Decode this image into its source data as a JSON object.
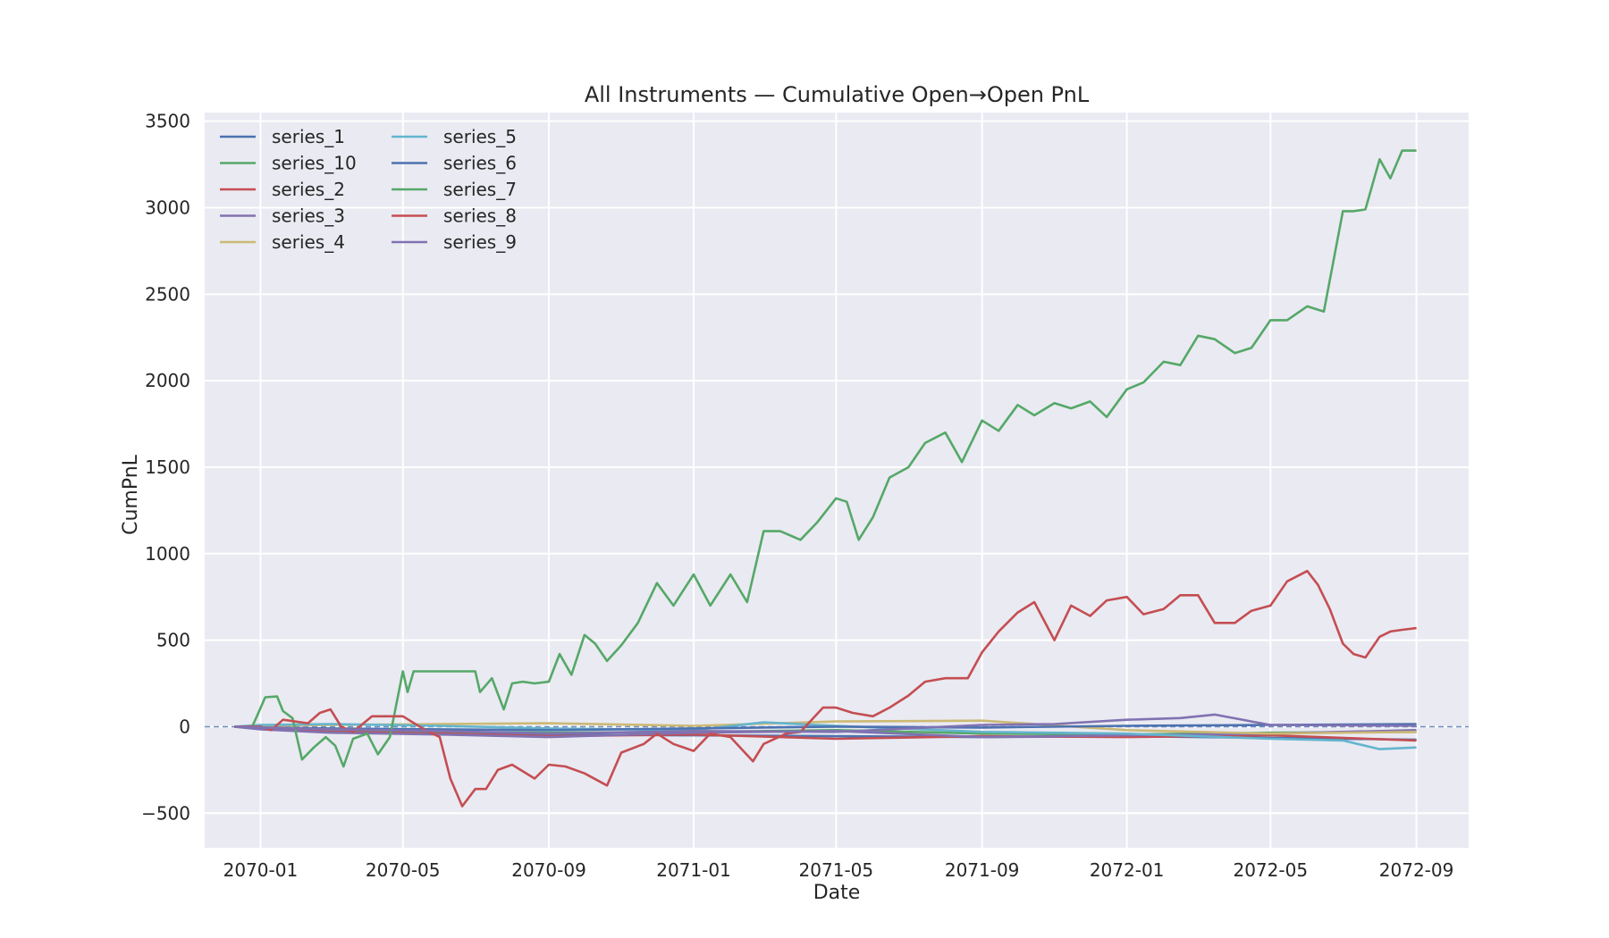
{
  "chart_data": {
    "type": "line",
    "title": "All Instruments — Cumulative Open→Open PnL",
    "xlabel": "Date",
    "ylabel": "CumPnL",
    "x_type": "date",
    "xlim": [
      "2069-11-15",
      "2072-10-15"
    ],
    "ylim": [
      -700,
      3550
    ],
    "x_ticks": [
      "2070-01-01",
      "2070-05-01",
      "2070-09-01",
      "2071-01-01",
      "2071-05-01",
      "2071-09-01",
      "2072-01-01",
      "2072-05-01",
      "2072-09-01"
    ],
    "x_tick_labels": [
      "2070-01",
      "2070-05",
      "2070-09",
      "2071-01",
      "2071-05",
      "2071-09",
      "2072-01",
      "2072-05",
      "2072-09"
    ],
    "y_ticks": [
      -500,
      0,
      500,
      1000,
      1500,
      2000,
      2500,
      3000,
      3500
    ],
    "y_tick_labels": [
      "−500",
      "0",
      "500",
      "1000",
      "1500",
      "2000",
      "2500",
      "3000",
      "3500"
    ],
    "zero_line": true,
    "grid": true,
    "legend_position": "top-left",
    "legend_columns": 2,
    "series": [
      {
        "name": "series_1",
        "color": "#4c72b0",
        "x": [
          "2069-12-10",
          "2070-01-01",
          "2070-03-01",
          "2070-06-01",
          "2070-09-01",
          "2071-01-01",
          "2071-05-01",
          "2071-09-01",
          "2072-01-01",
          "2072-05-01",
          "2072-09-01"
        ],
        "y": [
          0,
          -5,
          -20,
          -35,
          -45,
          -50,
          -55,
          -60,
          -55,
          -65,
          -75
        ]
      },
      {
        "name": "series_10",
        "color": "#55a868",
        "x": [
          "2069-12-10",
          "2070-01-01",
          "2070-03-01",
          "2070-06-01",
          "2070-09-01",
          "2071-01-01",
          "2071-05-01",
          "2071-09-01",
          "2072-01-01",
          "2072-05-01",
          "2072-09-01"
        ],
        "y": [
          0,
          -10,
          -25,
          -30,
          -35,
          -30,
          -20,
          -40,
          -45,
          -35,
          -30
        ]
      },
      {
        "name": "series_2",
        "color": "#c44e52",
        "x": [
          "2069-12-10",
          "2070-01-01",
          "2070-03-01",
          "2070-06-01",
          "2070-09-01",
          "2071-01-01",
          "2071-05-01",
          "2071-09-01",
          "2072-01-01",
          "2072-05-01",
          "2072-09-01"
        ],
        "y": [
          0,
          -10,
          -30,
          -40,
          -55,
          -45,
          -70,
          -55,
          -60,
          -50,
          -80
        ]
      },
      {
        "name": "series_3",
        "color": "#8172b2",
        "x": [
          "2069-12-10",
          "2070-01-01",
          "2070-03-01",
          "2070-06-01",
          "2070-09-01",
          "2071-01-01",
          "2071-05-01",
          "2071-09-01",
          "2072-01-01",
          "2072-05-01",
          "2072-09-01"
        ],
        "y": [
          0,
          -15,
          -35,
          -45,
          -60,
          -35,
          -25,
          -60,
          -50,
          -40,
          -20
        ]
      },
      {
        "name": "series_4",
        "color": "#ccb974",
        "x": [
          "2069-12-10",
          "2070-01-01",
          "2070-03-01",
          "2070-06-01",
          "2070-09-01",
          "2071-01-01",
          "2071-05-01",
          "2071-09-01",
          "2072-01-01",
          "2072-05-01",
          "2072-09-01"
        ],
        "y": [
          0,
          5,
          10,
          15,
          20,
          5,
          30,
          35,
          -20,
          -40,
          -30
        ]
      },
      {
        "name": "series_5",
        "color": "#64b5cd",
        "x": [
          "2069-12-10",
          "2070-01-01",
          "2070-03-01",
          "2070-06-01",
          "2070-09-01",
          "2071-01-01",
          "2071-05-01",
          "2071-03-01",
          "2071-09-01",
          "2072-01-01",
          "2072-05-01",
          "2072-07-01",
          "2072-08-01",
          "2072-09-01"
        ],
        "y": [
          0,
          10,
          15,
          5,
          -10,
          -20,
          5,
          25,
          -30,
          -40,
          -70,
          -80,
          -130,
          -120
        ]
      },
      {
        "name": "series_6",
        "color": "#4c72b0",
        "x": [
          "2069-12-10",
          "2070-01-01",
          "2070-03-01",
          "2070-06-01",
          "2070-09-01",
          "2071-01-01",
          "2071-05-01",
          "2071-09-01",
          "2072-01-01",
          "2072-05-01",
          "2072-09-01"
        ],
        "y": [
          0,
          -5,
          -10,
          -15,
          -20,
          -10,
          0,
          -5,
          5,
          10,
          15
        ]
      },
      {
        "name": "series_7",
        "color": "#55a868",
        "x": [
          "2069-12-10",
          "2069-12-25",
          "2069-12-29",
          "2070-01-05",
          "2070-01-15",
          "2070-01-20",
          "2070-01-28",
          "2070-02-05",
          "2070-02-15",
          "2070-02-25",
          "2070-03-05",
          "2070-03-12",
          "2070-03-20",
          "2070-04-01",
          "2070-04-10",
          "2070-04-20",
          "2070-05-01",
          "2070-05-05",
          "2070-05-10",
          "2070-06-01",
          "2070-07-01",
          "2070-07-05",
          "2070-07-15",
          "2070-07-25",
          "2070-08-01",
          "2070-08-10",
          "2070-08-20",
          "2070-09-01",
          "2070-09-10",
          "2070-09-20",
          "2070-10-01",
          "2070-10-10",
          "2070-10-20",
          "2070-11-01",
          "2070-11-15",
          "2070-12-01",
          "2070-12-15",
          "2071-01-01",
          "2071-01-15",
          "2071-02-01",
          "2071-02-15",
          "2071-03-01",
          "2071-03-15",
          "2071-04-01",
          "2071-04-15",
          "2071-05-01",
          "2071-05-10",
          "2071-05-20",
          "2071-06-01",
          "2071-06-15",
          "2071-07-01",
          "2071-07-15",
          "2071-08-01",
          "2071-08-15",
          "2071-09-01",
          "2071-09-15",
          "2071-10-01",
          "2071-10-15",
          "2071-11-01",
          "2071-11-15",
          "2071-12-01",
          "2071-12-15",
          "2072-01-01",
          "2072-01-15",
          "2072-02-01",
          "2072-02-15",
          "2072-03-01",
          "2072-03-15",
          "2072-04-01",
          "2072-04-15",
          "2072-05-01",
          "2072-05-15",
          "2072-06-01",
          "2072-06-15",
          "2072-07-01",
          "2072-07-10",
          "2072-07-20",
          "2072-08-01",
          "2072-08-10",
          "2072-08-20",
          "2072-09-01"
        ],
        "y": [
          0,
          0,
          60,
          170,
          175,
          90,
          50,
          -190,
          -120,
          -60,
          -110,
          -230,
          -70,
          -40,
          -160,
          -60,
          320,
          200,
          320,
          320,
          320,
          200,
          280,
          100,
          250,
          260,
          250,
          260,
          420,
          300,
          530,
          480,
          380,
          470,
          600,
          830,
          700,
          880,
          700,
          880,
          720,
          1130,
          1130,
          1080,
          1180,
          1320,
          1300,
          1080,
          1210,
          1440,
          1500,
          1640,
          1700,
          1530,
          1770,
          1710,
          1860,
          1800,
          1870,
          1840,
          1880,
          1790,
          1950,
          1990,
          2110,
          2090,
          2260,
          2240,
          2160,
          2190,
          2350,
          2350,
          2430,
          2400,
          2980,
          2980,
          2990,
          3280,
          3170,
          3330,
          3330
        ]
      },
      {
        "name": "series_8",
        "color": "#c44e52",
        "x": [
          "2069-12-10",
          "2070-01-01",
          "2070-01-10",
          "2070-01-20",
          "2070-02-10",
          "2070-02-20",
          "2070-03-01",
          "2070-03-10",
          "2070-03-20",
          "2070-04-05",
          "2070-04-20",
          "2070-05-01",
          "2070-05-20",
          "2070-06-01",
          "2070-06-10",
          "2070-06-20",
          "2070-07-01",
          "2070-07-10",
          "2070-07-20",
          "2070-08-01",
          "2070-08-20",
          "2070-09-01",
          "2070-09-15",
          "2070-10-01",
          "2070-10-20",
          "2070-11-01",
          "2070-11-20",
          "2070-12-01",
          "2070-12-15",
          "2071-01-01",
          "2071-01-15",
          "2071-02-01",
          "2071-02-20",
          "2071-03-01",
          "2071-03-20",
          "2071-04-01",
          "2071-04-20",
          "2071-05-01",
          "2071-05-15",
          "2071-06-01",
          "2071-06-15",
          "2071-07-01",
          "2071-07-15",
          "2071-08-01",
          "2071-08-20",
          "2071-09-01",
          "2071-09-15",
          "2071-10-01",
          "2071-10-15",
          "2071-11-01",
          "2071-11-15",
          "2071-12-01",
          "2071-12-15",
          "2072-01-01",
          "2072-01-15",
          "2072-02-01",
          "2072-02-15",
          "2072-03-01",
          "2072-03-15",
          "2072-04-01",
          "2072-04-15",
          "2072-05-01",
          "2072-05-15",
          "2072-06-01",
          "2072-06-10",
          "2072-06-20",
          "2072-07-01",
          "2072-07-10",
          "2072-07-20",
          "2072-08-01",
          "2072-08-10",
          "2072-08-20",
          "2072-09-01"
        ],
        "y": [
          0,
          0,
          -20,
          40,
          20,
          80,
          100,
          0,
          -30,
          60,
          60,
          60,
          -20,
          -60,
          -300,
          -460,
          -360,
          -360,
          -250,
          -220,
          -300,
          -220,
          -230,
          -270,
          -340,
          -150,
          -100,
          -40,
          -100,
          -140,
          -40,
          -60,
          -200,
          -100,
          -40,
          -30,
          110,
          110,
          80,
          60,
          110,
          180,
          260,
          280,
          280,
          430,
          550,
          660,
          720,
          500,
          700,
          640,
          730,
          750,
          650,
          680,
          760,
          760,
          600,
          600,
          670,
          700,
          840,
          900,
          820,
          680,
          480,
          420,
          400,
          520,
          550,
          560,
          570
        ]
      },
      {
        "name": "series_9",
        "color": "#8172b2",
        "x": [
          "2069-12-10",
          "2070-01-01",
          "2070-03-01",
          "2070-06-01",
          "2070-09-01",
          "2071-01-01",
          "2071-05-01",
          "2071-09-01",
          "2071-11-01",
          "2072-01-01",
          "2072-02-15",
          "2072-03-15",
          "2072-04-15",
          "2072-05-01",
          "2072-09-01"
        ],
        "y": [
          0,
          -5,
          -15,
          -25,
          -40,
          -25,
          -30,
          10,
          15,
          40,
          50,
          70,
          30,
          10,
          5
        ]
      }
    ]
  }
}
